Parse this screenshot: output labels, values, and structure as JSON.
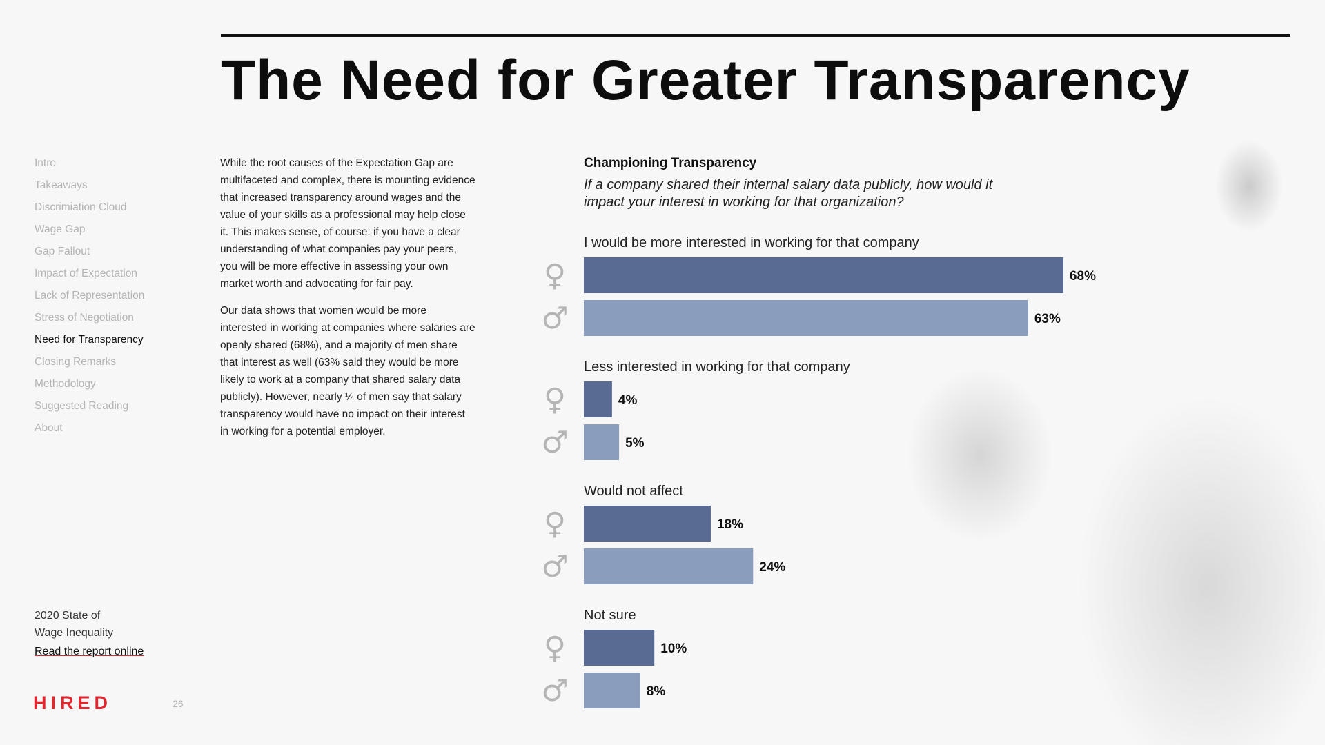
{
  "header": {
    "title": "The Need for Greater Transparency"
  },
  "sidebar": {
    "items": [
      {
        "label": "Intro",
        "active": false
      },
      {
        "label": "Takeaways",
        "active": false
      },
      {
        "label": "Discrimiation Cloud",
        "active": false
      },
      {
        "label": "Wage Gap",
        "active": false
      },
      {
        "label": "Gap Fallout",
        "active": false
      },
      {
        "label": "Impact of Expectation",
        "active": false
      },
      {
        "label": "Lack of Representation",
        "active": false
      },
      {
        "label": "Stress of Negotiation",
        "active": false
      },
      {
        "label": "Need for Transparency",
        "active": true
      },
      {
        "label": "Closing Remarks",
        "active": false
      },
      {
        "label": "Methodology",
        "active": false
      },
      {
        "label": "Suggested Reading",
        "active": false
      },
      {
        "label": "About",
        "active": false
      }
    ]
  },
  "footer": {
    "report_line1": "2020 State of",
    "report_line2": "Wage Inequality",
    "report_link": "Read the report online",
    "logo": "HIRED",
    "page_number": "26"
  },
  "body": {
    "paragraph1": "While the root causes of the Expectation Gap are multifaceted and complex, there is mounting evidence that increased transparency around wages and the value of your skills as a professional may help close it. This makes sense, of course: if you have a clear understanding of what companies pay your peers, you will be more effective in assessing your own market worth and advocating for fair pay.",
    "paragraph2": "Our data shows that women would be more interested in working at companies where salaries are openly shared (68%), and a majority of men share that interest as well (63% said they would be more likely to work at a company that shared salary data publicly). However, nearly ¼ of men say that salary transparency would have no impact on their interest in working for a potential employer."
  },
  "colors": {
    "female": "#596b92",
    "male": "#8a9dbd",
    "accent": "#e0262f"
  },
  "chart_data": {
    "type": "bar",
    "orientation": "horizontal",
    "title": "Championing Transparency",
    "subtitle": "If a company shared their internal salary data publicly, how would it impact your interest in working for that organization?",
    "categories": [
      "I would be more interested in working for that company",
      "Less interested in working for that company",
      "Would not affect",
      "Not sure"
    ],
    "series": [
      {
        "name": "Women",
        "symbol": "♀",
        "values": [
          68,
          4,
          18,
          10
        ]
      },
      {
        "name": "Men",
        "symbol": "♂",
        "values": [
          63,
          5,
          24,
          8
        ]
      }
    ],
    "unit": "%",
    "xlim": [
      0,
      100
    ]
  }
}
